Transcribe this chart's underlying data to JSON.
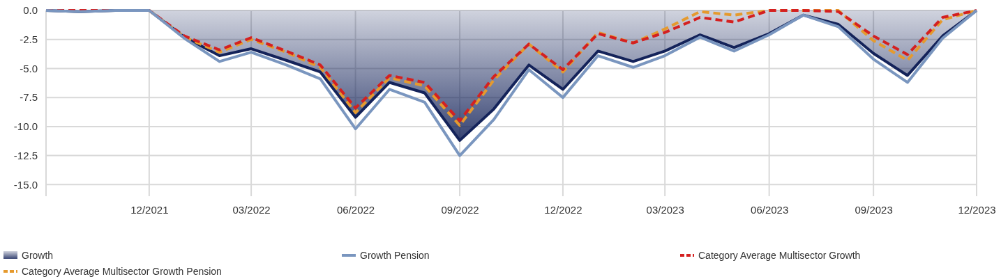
{
  "chart_data": {
    "type": "line",
    "x": [
      "2021-09",
      "2021-10",
      "2021-11",
      "2021-12",
      "2022-01",
      "2022-02",
      "2022-03",
      "2022-04",
      "2022-05",
      "2022-06",
      "2022-07",
      "2022-08",
      "2022-09",
      "2022-10",
      "2022-11",
      "2022-12",
      "2023-01",
      "2023-02",
      "2023-03",
      "2023-04",
      "2023-05",
      "2023-06",
      "2023-07",
      "2023-08",
      "2023-09",
      "2023-10",
      "2023-11",
      "2023-12"
    ],
    "series": [
      {
        "name": "Growth",
        "type": "area",
        "color": "#14235a",
        "values": [
          0,
          -0.1,
          0,
          0,
          -2.3,
          -3.9,
          -3.3,
          -4.3,
          -5.3,
          -9.2,
          -6.2,
          -7.1,
          -11.2,
          -8.5,
          -4.7,
          -6.8,
          -3.5,
          -4.4,
          -3.5,
          -2.1,
          -3.2,
          -2.0,
          -0.4,
          -1.2,
          -3.7,
          -5.6,
          -2.2,
          0
        ]
      },
      {
        "name": "Growth Pension",
        "color": "#7a96bf",
        "values": [
          0,
          -0.1,
          0,
          0,
          -2.4,
          -4.4,
          -3.6,
          -4.7,
          -5.9,
          -10.2,
          -6.8,
          -7.9,
          -12.5,
          -9.4,
          -5.1,
          -7.5,
          -3.9,
          -4.9,
          -3.9,
          -2.3,
          -3.5,
          -2.1,
          -0.4,
          -1.4,
          -4.2,
          -6.2,
          -2.4,
          0
        ]
      },
      {
        "name": "Category Average Multisector Growth",
        "color": "#d42020",
        "line_style": "dashed",
        "values": [
          0,
          0,
          0,
          0,
          -2.2,
          -3.4,
          -2.35,
          -3.5,
          -4.7,
          -8.4,
          -5.6,
          -6.2,
          -9.5,
          -5.7,
          -2.9,
          -5.1,
          -2.0,
          -2.8,
          -1.9,
          -0.6,
          -1.0,
          0,
          0,
          -0.1,
          -2.2,
          -3.8,
          -0.6,
          0
        ]
      },
      {
        "name": "Category Average Multisector Growth Pension",
        "color": "#e59a2e",
        "line_style": "dashed",
        "values": [
          null,
          null,
          null,
          0,
          -2.3,
          -3.6,
          -2.5,
          -3.6,
          -4.9,
          -8.8,
          -5.8,
          -6.5,
          -9.9,
          -6.0,
          -2.9,
          -5.3,
          -1.9,
          -2.8,
          -1.6,
          -0.1,
          -0.4,
          0,
          0,
          0,
          -2.6,
          -4.3,
          -0.8,
          0
        ]
      }
    ],
    "xlim": [
      "2021-09",
      "2023-12"
    ],
    "xticks": [
      {
        "value": "2021-09",
        "label": null
      },
      {
        "value": "2021-12",
        "label": "12/2021"
      },
      {
        "value": "2022-03",
        "label": "03/2022"
      },
      {
        "value": "2022-06",
        "label": "06/2022"
      },
      {
        "value": "2022-09",
        "label": "09/2022"
      },
      {
        "value": "2022-12",
        "label": "12/2022"
      },
      {
        "value": "2023-03",
        "label": "03/2023"
      },
      {
        "value": "2023-06",
        "label": "06/2023"
      },
      {
        "value": "2023-09",
        "label": "09/2023"
      },
      {
        "value": "2023-12",
        "label": "12/2023"
      }
    ],
    "ylim": [
      -16,
      0
    ],
    "yticks": [
      {
        "value": 0,
        "label": "0.0"
      },
      {
        "value": -2.5,
        "label": "-2.5"
      },
      {
        "value": -5,
        "label": "-5.0"
      },
      {
        "value": -7.5,
        "label": "-7.5"
      },
      {
        "value": -10,
        "label": "-10.0"
      },
      {
        "value": -12.5,
        "label": "-12.5"
      },
      {
        "value": -15,
        "label": "-15.0"
      }
    ],
    "grid": true,
    "legend": "bottom",
    "line_style": "solid",
    "marker": "none"
  }
}
